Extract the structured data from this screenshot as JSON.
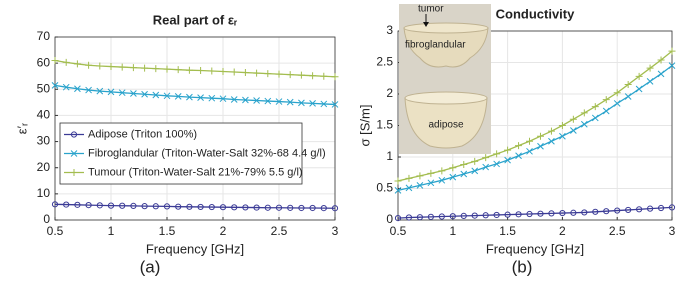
{
  "chart_data": [
    {
      "type": "line",
      "title": "Real part of εᵣ",
      "xlabel": "Frequency [GHz]",
      "ylabel": "ε′ᵣ",
      "panel_label": "(a)",
      "x": [
        0.5,
        0.6,
        0.7,
        0.8,
        0.9,
        1.0,
        1.1,
        1.2,
        1.3,
        1.4,
        1.5,
        1.6,
        1.7,
        1.8,
        1.9,
        2.0,
        2.1,
        2.2,
        2.3,
        2.4,
        2.5,
        2.6,
        2.7,
        2.8,
        2.9,
        3.0
      ],
      "xlim": [
        0.5,
        3
      ],
      "xticks": [
        0.5,
        1,
        1.5,
        2,
        2.5,
        3
      ],
      "ylim": [
        0,
        70
      ],
      "yticks": [
        0,
        10,
        20,
        30,
        40,
        50,
        60,
        70
      ],
      "grid": true,
      "legend": "center left",
      "series": [
        {
          "name": "Adipose (Triton 100%)",
          "color": "#3b3b96",
          "marker": "o",
          "values": [
            6.0,
            5.9,
            5.8,
            5.7,
            5.6,
            5.5,
            5.45,
            5.4,
            5.3,
            5.25,
            5.2,
            5.1,
            5.05,
            5.0,
            4.95,
            4.9,
            4.85,
            4.8,
            4.75,
            4.7,
            4.7,
            4.65,
            4.6,
            4.6,
            4.55,
            4.5
          ]
        },
        {
          "name": "Fibroglandular (Triton-Water-Salt 32%-68 4.4 g/l)",
          "color": "#2aa3cc",
          "marker": "x",
          "values": [
            51.5,
            50.8,
            50.2,
            49.7,
            49.3,
            49.0,
            48.7,
            48.4,
            48.1,
            47.8,
            47.5,
            47.3,
            47.0,
            46.8,
            46.6,
            46.4,
            46.1,
            45.9,
            45.7,
            45.5,
            45.3,
            45.1,
            44.8,
            44.6,
            44.4,
            44.2
          ]
        },
        {
          "name": "Tumour (Triton-Water-Salt 21%-79% 5.5 g/l)",
          "color": "#a3bd4f",
          "marker": "+",
          "values": [
            61.0,
            60.3,
            59.7,
            59.2,
            58.9,
            58.7,
            58.5,
            58.3,
            58.1,
            57.9,
            57.7,
            57.5,
            57.3,
            57.2,
            57.0,
            56.8,
            56.6,
            56.4,
            56.2,
            56.0,
            55.8,
            55.6,
            55.4,
            55.2,
            55.0,
            54.8
          ]
        }
      ]
    },
    {
      "type": "line",
      "title": "Conductivity",
      "xlabel": "Frequency [GHz]",
      "ylabel": "σ [S/m]",
      "panel_label": "(b)",
      "inset_labels": [
        "tumor",
        "fibroglandular",
        "adipose"
      ],
      "x": [
        0.5,
        0.6,
        0.7,
        0.8,
        0.9,
        1.0,
        1.1,
        1.2,
        1.3,
        1.4,
        1.5,
        1.6,
        1.7,
        1.8,
        1.9,
        2.0,
        2.1,
        2.2,
        2.3,
        2.4,
        2.5,
        2.6,
        2.7,
        2.8,
        2.9,
        3.0
      ],
      "xlim": [
        0.5,
        3
      ],
      "xticks": [
        0.5,
        1,
        1.5,
        2,
        2.5,
        3
      ],
      "ylim": [
        0,
        3
      ],
      "yticks": [
        0,
        0.5,
        1,
        1.5,
        2,
        2.5,
        3
      ],
      "grid": true,
      "series": [
        {
          "color": "#3b3b96",
          "marker": "o",
          "values": [
            0.03,
            0.04,
            0.045,
            0.05,
            0.055,
            0.06,
            0.065,
            0.07,
            0.075,
            0.08,
            0.085,
            0.09,
            0.095,
            0.1,
            0.105,
            0.11,
            0.115,
            0.12,
            0.13,
            0.14,
            0.15,
            0.16,
            0.17,
            0.18,
            0.19,
            0.2
          ]
        },
        {
          "color": "#2aa3cc",
          "marker": "x",
          "values": [
            0.47,
            0.51,
            0.55,
            0.59,
            0.63,
            0.68,
            0.73,
            0.78,
            0.84,
            0.89,
            0.95,
            1.02,
            1.09,
            1.17,
            1.25,
            1.33,
            1.42,
            1.52,
            1.62,
            1.73,
            1.85,
            1.96,
            2.08,
            2.2,
            2.32,
            2.45
          ]
        },
        {
          "color": "#a3bd4f",
          "marker": "+",
          "values": [
            0.62,
            0.66,
            0.7,
            0.74,
            0.78,
            0.83,
            0.88,
            0.93,
            0.99,
            1.05,
            1.11,
            1.18,
            1.25,
            1.33,
            1.41,
            1.5,
            1.6,
            1.7,
            1.8,
            1.91,
            2.02,
            2.15,
            2.28,
            2.41,
            2.54,
            2.68
          ]
        }
      ]
    }
  ]
}
